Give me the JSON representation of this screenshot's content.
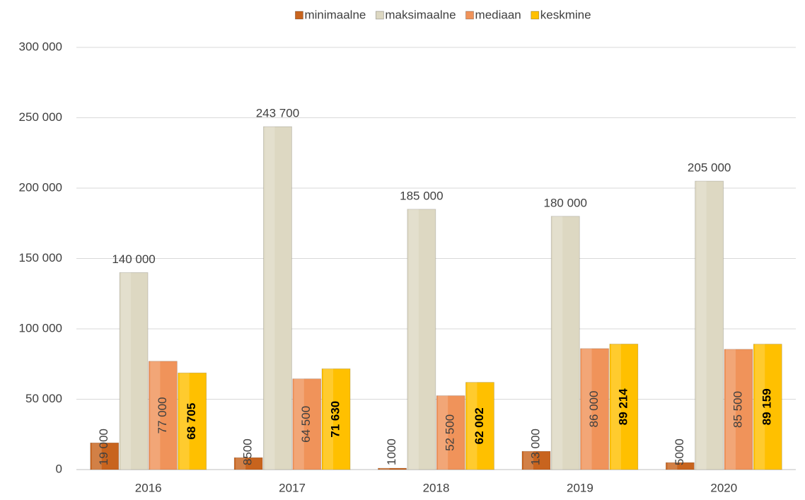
{
  "chart_data": {
    "type": "bar",
    "categories": [
      "2016",
      "2017",
      "2018",
      "2019",
      "2020"
    ],
    "series": [
      {
        "name": "minimaalne",
        "color": "#c8641e",
        "label_position": "base",
        "label_weight": "normal",
        "values": [
          19000,
          8500,
          1000,
          13000,
          5000
        ],
        "value_labels": [
          "19 000",
          "8500",
          "1000",
          "13 000",
          "5000"
        ]
      },
      {
        "name": "maksimaalne",
        "color": "#ddd8c2",
        "label_position": "outside",
        "label_weight": "normal",
        "values": [
          140000,
          243700,
          185000,
          180000,
          205000
        ],
        "value_labels": [
          "140 000",
          "243 700",
          "185 000",
          "180 000",
          "205 000"
        ]
      },
      {
        "name": "mediaan",
        "color": "#f0935a",
        "label_position": "center",
        "label_weight": "normal",
        "values": [
          77000,
          64500,
          52500,
          86000,
          85500
        ],
        "value_labels": [
          "77 000",
          "64 500",
          "52 500",
          "86 000",
          "85 500"
        ]
      },
      {
        "name": "keskmine",
        "color": "#ffc000",
        "label_position": "center",
        "label_weight": "bold",
        "values": [
          68705,
          71630,
          62002,
          89214,
          89159
        ],
        "value_labels": [
          "68 705",
          "71 630",
          "62 002",
          "89 214",
          "89 159"
        ]
      }
    ],
    "ylim": [
      0,
      300000
    ],
    "yticks": [
      0,
      {
        "value": 50000,
        "label": "50 000"
      },
      {
        "value": 100000,
        "label": "100 000"
      },
      {
        "value": 150000,
        "label": "150 000"
      },
      {
        "value": 200000,
        "label": "200 000"
      },
      {
        "value": 250000,
        "label": "250 000"
      },
      {
        "value": 300000,
        "label": "300 000"
      }
    ],
    "grid": true,
    "legend": "top"
  }
}
